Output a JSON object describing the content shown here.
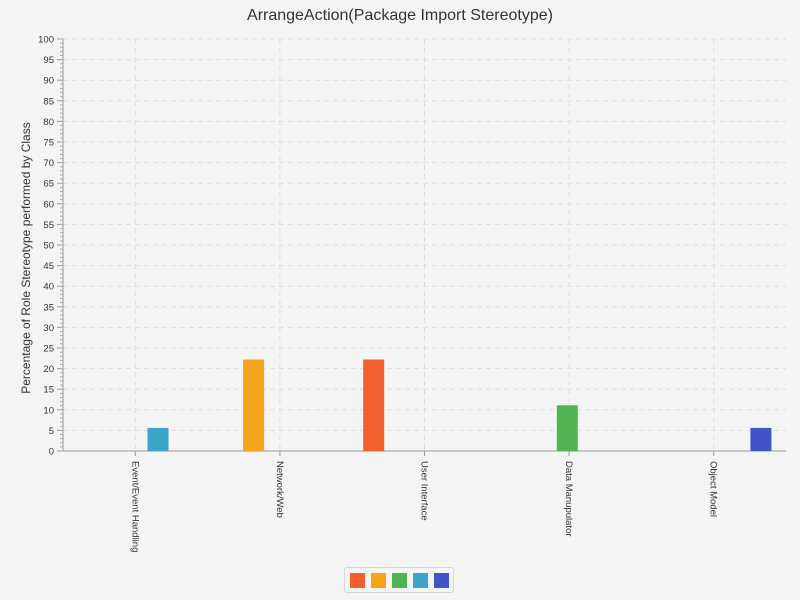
{
  "chart_data": {
    "type": "bar",
    "title": "ArrangeAction(Package Import Stereotype)",
    "xlabel": "",
    "ylabel": "Percentage of Role Stereotype performed by Class",
    "ylim": [
      0,
      100
    ],
    "ytick_step": 5,
    "grid": true,
    "legend_position": "bottom-center",
    "categories": [
      "Event/Event Handling",
      "Network/Web",
      "User Interface",
      "Data Manupulator",
      "Object Model"
    ],
    "series": [
      {
        "color": "#f05f2d",
        "values": [
          0,
          0,
          22.2,
          0,
          0
        ]
      },
      {
        "color": "#f5a31a",
        "values": [
          0,
          22.2,
          0,
          0,
          0
        ]
      },
      {
        "color": "#52b353",
        "values": [
          0,
          0,
          0,
          11.1,
          0
        ]
      },
      {
        "color": "#3ca6c8",
        "values": [
          5.6,
          0,
          0,
          0,
          0
        ]
      },
      {
        "color": "#4253c8",
        "values": [
          0,
          0,
          0,
          0,
          5.6
        ]
      }
    ]
  }
}
